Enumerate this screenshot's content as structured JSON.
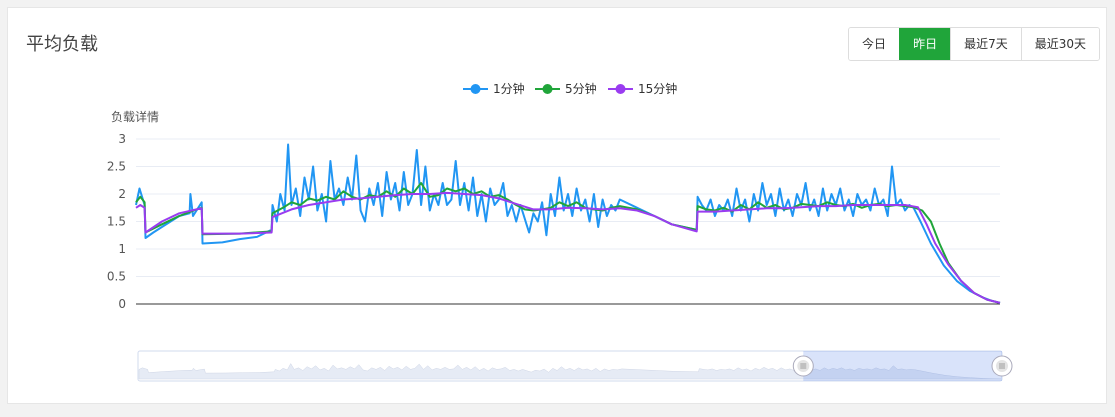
{
  "panel": {
    "title": "平均负载",
    "ranges": [
      {
        "label": "今日",
        "active": false
      },
      {
        "label": "昨日",
        "active": true
      },
      {
        "label": "最近7天",
        "active": false
      },
      {
        "label": "最近30天",
        "active": false
      }
    ]
  },
  "colors": {
    "load1": "#2196f3",
    "load5": "#20a53a",
    "load15": "#9a3cf0",
    "axis": "#333333",
    "grid": "#e8ecf4",
    "active": "#20a53a"
  },
  "chart_data": {
    "type": "line",
    "ylabel": "负载详情",
    "yticks": [
      "0",
      "0.5",
      "1",
      "1.5",
      "2",
      "2.5",
      "3"
    ],
    "ylim": [
      0,
      3
    ],
    "xlim": [
      0,
      100
    ],
    "legend_position": "top-center",
    "series": [
      {
        "name": "1分钟",
        "color": "#2196f3",
        "points": [
          [
            0,
            1.8
          ],
          [
            0.4,
            2.1
          ],
          [
            0.8,
            1.9
          ],
          [
            1,
            1.8
          ],
          [
            1.1,
            1.2
          ],
          [
            2,
            1.3
          ],
          [
            3,
            1.4
          ],
          [
            4,
            1.5
          ],
          [
            5,
            1.6
          ],
          [
            6.2,
            1.65
          ],
          [
            6.3,
            2.0
          ],
          [
            6.6,
            1.6
          ],
          [
            7,
            1.7
          ],
          [
            7.6,
            1.85
          ],
          [
            7.7,
            1.1
          ],
          [
            10,
            1.12
          ],
          [
            12,
            1.18
          ],
          [
            14,
            1.22
          ],
          [
            15.7,
            1.35
          ],
          [
            15.8,
            1.8
          ],
          [
            16.3,
            1.5
          ],
          [
            16.7,
            2.0
          ],
          [
            17.2,
            1.7
          ],
          [
            17.6,
            2.9
          ],
          [
            18,
            1.8
          ],
          [
            18.5,
            2.1
          ],
          [
            19,
            1.6
          ],
          [
            19.5,
            2.3
          ],
          [
            20,
            1.9
          ],
          [
            20.5,
            2.5
          ],
          [
            21,
            1.7
          ],
          [
            21.5,
            2.0
          ],
          [
            22,
            1.5
          ],
          [
            22.5,
            2.6
          ],
          [
            23,
            1.9
          ],
          [
            23.5,
            2.1
          ],
          [
            24,
            1.8
          ],
          [
            24.5,
            2.3
          ],
          [
            25,
            1.9
          ],
          [
            25.5,
            2.7
          ],
          [
            26,
            1.7
          ],
          [
            26.5,
            1.5
          ],
          [
            27,
            2.1
          ],
          [
            27.5,
            1.8
          ],
          [
            28,
            2.2
          ],
          [
            28.5,
            1.6
          ],
          [
            29,
            2.4
          ],
          [
            29.5,
            1.9
          ],
          [
            30,
            2.2
          ],
          [
            30.5,
            1.7
          ],
          [
            31,
            2.4
          ],
          [
            31.5,
            1.8
          ],
          [
            32,
            2.0
          ],
          [
            32.5,
            2.8
          ],
          [
            33,
            1.8
          ],
          [
            33.5,
            2.5
          ],
          [
            34,
            1.7
          ],
          [
            34.5,
            2.0
          ],
          [
            35,
            1.8
          ],
          [
            35.5,
            2.2
          ],
          [
            36,
            1.8
          ],
          [
            36.5,
            1.9
          ],
          [
            37,
            2.6
          ],
          [
            37.5,
            1.8
          ],
          [
            38,
            2.2
          ],
          [
            38.5,
            1.7
          ],
          [
            39,
            2.3
          ],
          [
            39.5,
            1.6
          ],
          [
            40,
            2.0
          ],
          [
            40.5,
            1.5
          ],
          [
            41,
            2.1
          ],
          [
            41.5,
            1.8
          ],
          [
            42,
            1.9
          ],
          [
            42.5,
            2.2
          ],
          [
            43,
            1.6
          ],
          [
            43.5,
            1.8
          ],
          [
            44,
            1.5
          ],
          [
            44.5,
            1.8
          ],
          [
            45.2,
            1.45
          ],
          [
            45.5,
            1.3
          ],
          [
            46,
            1.65
          ],
          [
            46.5,
            1.5
          ],
          [
            47,
            1.85
          ],
          [
            47.5,
            1.25
          ],
          [
            48,
            2.0
          ],
          [
            48.5,
            1.6
          ],
          [
            49,
            2.3
          ],
          [
            49.5,
            1.7
          ],
          [
            50,
            2.0
          ],
          [
            50.5,
            1.6
          ],
          [
            51,
            2.1
          ],
          [
            51.5,
            1.7
          ],
          [
            52,
            1.9
          ],
          [
            52.5,
            1.5
          ],
          [
            53,
            2.0
          ],
          [
            53.5,
            1.4
          ],
          [
            54,
            1.9
          ],
          [
            54.5,
            1.6
          ],
          [
            55,
            1.8
          ],
          [
            55.5,
            1.7
          ],
          [
            56,
            1.9
          ],
          [
            58,
            1.75
          ],
          [
            60,
            1.6
          ],
          [
            62,
            1.45
          ],
          [
            64.9,
            1.35
          ],
          [
            65,
            1.95
          ],
          [
            65.5,
            1.8
          ],
          [
            66,
            1.7
          ],
          [
            66.5,
            1.9
          ],
          [
            67,
            1.6
          ],
          [
            67.5,
            1.8
          ],
          [
            68,
            1.7
          ],
          [
            68.5,
            1.9
          ],
          [
            69,
            1.6
          ],
          [
            69.5,
            2.1
          ],
          [
            70,
            1.7
          ],
          [
            70.5,
            1.9
          ],
          [
            71,
            1.5
          ],
          [
            71.5,
            2.0
          ],
          [
            72,
            1.7
          ],
          [
            72.5,
            2.2
          ],
          [
            73,
            1.8
          ],
          [
            73.5,
            2.0
          ],
          [
            74,
            1.6
          ],
          [
            74.5,
            2.1
          ],
          [
            75,
            1.7
          ],
          [
            75.5,
            1.9
          ],
          [
            76,
            1.6
          ],
          [
            76.5,
            2.0
          ],
          [
            77,
            1.8
          ],
          [
            77.5,
            2.2
          ],
          [
            78,
            1.7
          ],
          [
            78.5,
            1.9
          ],
          [
            79,
            1.6
          ],
          [
            79.5,
            2.1
          ],
          [
            80,
            1.7
          ],
          [
            80.5,
            2.0
          ],
          [
            81,
            1.8
          ],
          [
            81.5,
            2.1
          ],
          [
            82,
            1.7
          ],
          [
            82.5,
            1.9
          ],
          [
            83,
            1.6
          ],
          [
            83.5,
            2.0
          ],
          [
            84,
            1.8
          ],
          [
            84.5,
            1.9
          ],
          [
            85,
            1.7
          ],
          [
            85.5,
            2.1
          ],
          [
            86,
            1.8
          ],
          [
            86.5,
            1.9
          ],
          [
            87,
            1.6
          ],
          [
            87.5,
            2.5
          ],
          [
            88,
            1.8
          ],
          [
            88.5,
            1.9
          ],
          [
            89,
            1.7
          ],
          [
            89.5,
            1.8
          ],
          [
            90,
            1.75
          ],
          [
            90.8,
            1.5
          ],
          [
            92,
            1.1
          ],
          [
            93.5,
            0.7
          ],
          [
            95,
            0.42
          ],
          [
            96.5,
            0.24
          ],
          [
            98,
            0.12
          ],
          [
            99,
            0.06
          ],
          [
            100,
            0.02
          ]
        ]
      },
      {
        "name": "5分钟",
        "color": "#20a53a",
        "points": [
          [
            0,
            1.85
          ],
          [
            0.5,
            1.95
          ],
          [
            1,
            1.85
          ],
          [
            1.1,
            1.3
          ],
          [
            3,
            1.45
          ],
          [
            5,
            1.6
          ],
          [
            7,
            1.72
          ],
          [
            7.6,
            1.75
          ],
          [
            7.7,
            1.27
          ],
          [
            12,
            1.28
          ],
          [
            15.7,
            1.32
          ],
          [
            15.8,
            1.65
          ],
          [
            17,
            1.75
          ],
          [
            18,
            1.85
          ],
          [
            19,
            1.8
          ],
          [
            20,
            1.92
          ],
          [
            21,
            1.88
          ],
          [
            22,
            1.95
          ],
          [
            23,
            1.9
          ],
          [
            24,
            2.05
          ],
          [
            25,
            1.95
          ],
          [
            26,
            1.9
          ],
          [
            27,
            1.98
          ],
          [
            28,
            1.95
          ],
          [
            29,
            2.05
          ],
          [
            30,
            1.95
          ],
          [
            31,
            2.1
          ],
          [
            32,
            2.0
          ],
          [
            33,
            2.2
          ],
          [
            34,
            1.95
          ],
          [
            35,
            1.98
          ],
          [
            36,
            2.1
          ],
          [
            37,
            2.05
          ],
          [
            38,
            2.1
          ],
          [
            39,
            2.0
          ],
          [
            40,
            2.05
          ],
          [
            41,
            1.95
          ],
          [
            42,
            1.98
          ],
          [
            43,
            1.9
          ],
          [
            44,
            1.8
          ],
          [
            45,
            1.72
          ],
          [
            46,
            1.7
          ],
          [
            47,
            1.72
          ],
          [
            48,
            1.75
          ],
          [
            49,
            1.85
          ],
          [
            50,
            1.78
          ],
          [
            51,
            1.85
          ],
          [
            52,
            1.75
          ],
          [
            53,
            1.72
          ],
          [
            54,
            1.7
          ],
          [
            55,
            1.75
          ],
          [
            56,
            1.78
          ],
          [
            58,
            1.72
          ],
          [
            60,
            1.6
          ],
          [
            62,
            1.45
          ],
          [
            64.9,
            1.35
          ],
          [
            65,
            1.78
          ],
          [
            66,
            1.72
          ],
          [
            67,
            1.7
          ],
          [
            68,
            1.75
          ],
          [
            69,
            1.68
          ],
          [
            70,
            1.8
          ],
          [
            71,
            1.72
          ],
          [
            72,
            1.85
          ],
          [
            73,
            1.75
          ],
          [
            74,
            1.8
          ],
          [
            75,
            1.72
          ],
          [
            76,
            1.75
          ],
          [
            77,
            1.82
          ],
          [
            78,
            1.8
          ],
          [
            79,
            1.78
          ],
          [
            80,
            1.85
          ],
          [
            81,
            1.8
          ],
          [
            82,
            1.78
          ],
          [
            83,
            1.82
          ],
          [
            84,
            1.75
          ],
          [
            85,
            1.8
          ],
          [
            86,
            1.82
          ],
          [
            87,
            1.78
          ],
          [
            88,
            1.8
          ],
          [
            89,
            1.78
          ],
          [
            90,
            1.76
          ],
          [
            91,
            1.7
          ],
          [
            92,
            1.5
          ],
          [
            93,
            1.1
          ],
          [
            94,
            0.75
          ],
          [
            95.5,
            0.42
          ],
          [
            97,
            0.2
          ],
          [
            98.5,
            0.08
          ],
          [
            100,
            0.02
          ]
        ]
      },
      {
        "name": "15分钟",
        "color": "#9a3cf0",
        "points": [
          [
            0,
            1.75
          ],
          [
            0.5,
            1.8
          ],
          [
            1,
            1.75
          ],
          [
            1.1,
            1.3
          ],
          [
            3,
            1.5
          ],
          [
            5,
            1.65
          ],
          [
            7,
            1.72
          ],
          [
            7.6,
            1.74
          ],
          [
            7.7,
            1.28
          ],
          [
            12,
            1.28
          ],
          [
            15.7,
            1.3
          ],
          [
            15.8,
            1.58
          ],
          [
            18,
            1.72
          ],
          [
            20,
            1.8
          ],
          [
            22,
            1.85
          ],
          [
            24,
            1.9
          ],
          [
            26,
            1.92
          ],
          [
            28,
            1.95
          ],
          [
            30,
            1.98
          ],
          [
            32,
            2.0
          ],
          [
            34,
            2.0
          ],
          [
            36,
            2.02
          ],
          [
            38,
            2.0
          ],
          [
            40,
            1.98
          ],
          [
            42,
            1.92
          ],
          [
            44,
            1.82
          ],
          [
            46,
            1.72
          ],
          [
            48,
            1.72
          ],
          [
            50,
            1.75
          ],
          [
            52,
            1.74
          ],
          [
            54,
            1.72
          ],
          [
            56,
            1.74
          ],
          [
            58,
            1.7
          ],
          [
            60,
            1.6
          ],
          [
            62,
            1.45
          ],
          [
            64.9,
            1.32
          ],
          [
            65,
            1.68
          ],
          [
            67,
            1.68
          ],
          [
            69,
            1.7
          ],
          [
            71,
            1.72
          ],
          [
            73,
            1.74
          ],
          [
            75,
            1.74
          ],
          [
            77,
            1.76
          ],
          [
            79,
            1.78
          ],
          [
            81,
            1.78
          ],
          [
            83,
            1.8
          ],
          [
            85,
            1.8
          ],
          [
            87,
            1.8
          ],
          [
            89,
            1.8
          ],
          [
            90.5,
            1.76
          ],
          [
            91.5,
            1.45
          ],
          [
            92.5,
            1.1
          ],
          [
            94,
            0.72
          ],
          [
            95.5,
            0.42
          ],
          [
            97,
            0.2
          ],
          [
            98.5,
            0.08
          ],
          [
            100,
            0.02
          ]
        ]
      }
    ],
    "zoom": {
      "start_fraction": 0.77,
      "end_fraction": 1.0
    }
  }
}
